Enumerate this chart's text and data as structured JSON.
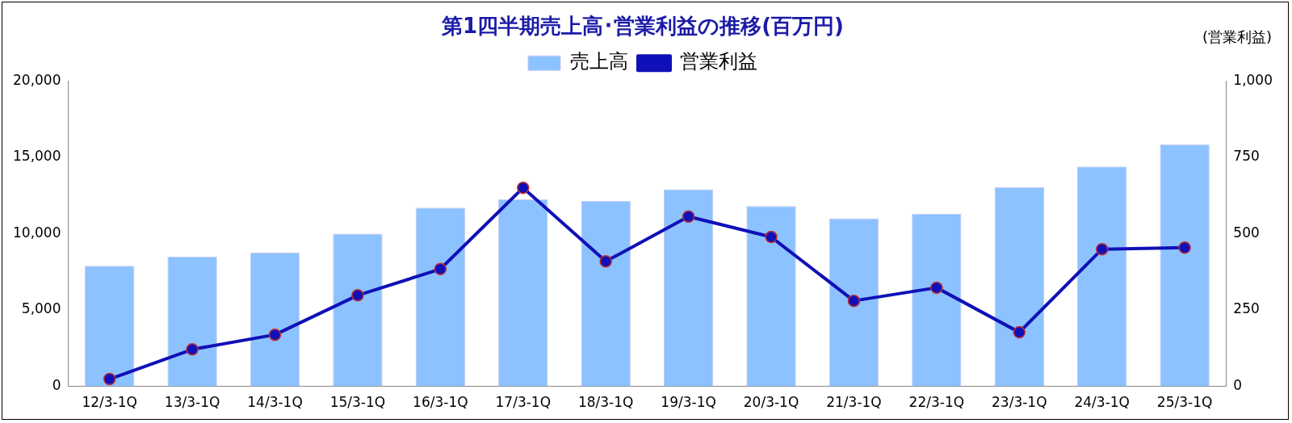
{
  "chart_data": {
    "type": "bar",
    "title": "第1四半期売上高･営業利益の推移(百万円)",
    "y2label": "(営業利益)",
    "categories": [
      "12/3-1Q",
      "13/3-1Q",
      "14/3-1Q",
      "15/3-1Q",
      "16/3-1Q",
      "17/3-1Q",
      "18/3-1Q",
      "19/3-1Q",
      "20/3-1Q",
      "21/3-1Q",
      "22/3-1Q",
      "23/3-1Q",
      "24/3-1Q",
      "25/3-1Q"
    ],
    "series": [
      {
        "name": "売上高",
        "color": "#8cc2ff",
        "values": [
          7900,
          8500,
          8750,
          10000,
          11700,
          12250,
          12150,
          12900,
          11800,
          11000,
          11300,
          13050,
          14400,
          15850
        ]
      },
      {
        "name": "営業利益",
        "type": "line",
        "axis": "y2",
        "color": "#1010b8",
        "marker": "circle",
        "values": [
          24,
          121,
          169,
          298,
          384,
          650,
          409,
          556,
          489,
          280,
          323,
          177,
          449,
          454
        ]
      }
    ],
    "ylim": [
      0,
      20000
    ],
    "yticks": [
      {
        "value": 0,
        "label": "0"
      },
      {
        "value": 5000,
        "label": "5,000"
      },
      {
        "value": 10000,
        "label": "10,000"
      },
      {
        "value": 15000,
        "label": "15,000"
      },
      {
        "value": 20000,
        "label": "20,000"
      }
    ],
    "y2lim": [
      0,
      1000
    ],
    "y2ticks": [
      {
        "value": 0,
        "label": "0"
      },
      {
        "value": 250,
        "label": "250"
      },
      {
        "value": 500,
        "label": "500"
      },
      {
        "value": 750,
        "label": "750"
      },
      {
        "value": 1000,
        "label": "1,000"
      }
    ],
    "grid": false,
    "legend": "top"
  }
}
